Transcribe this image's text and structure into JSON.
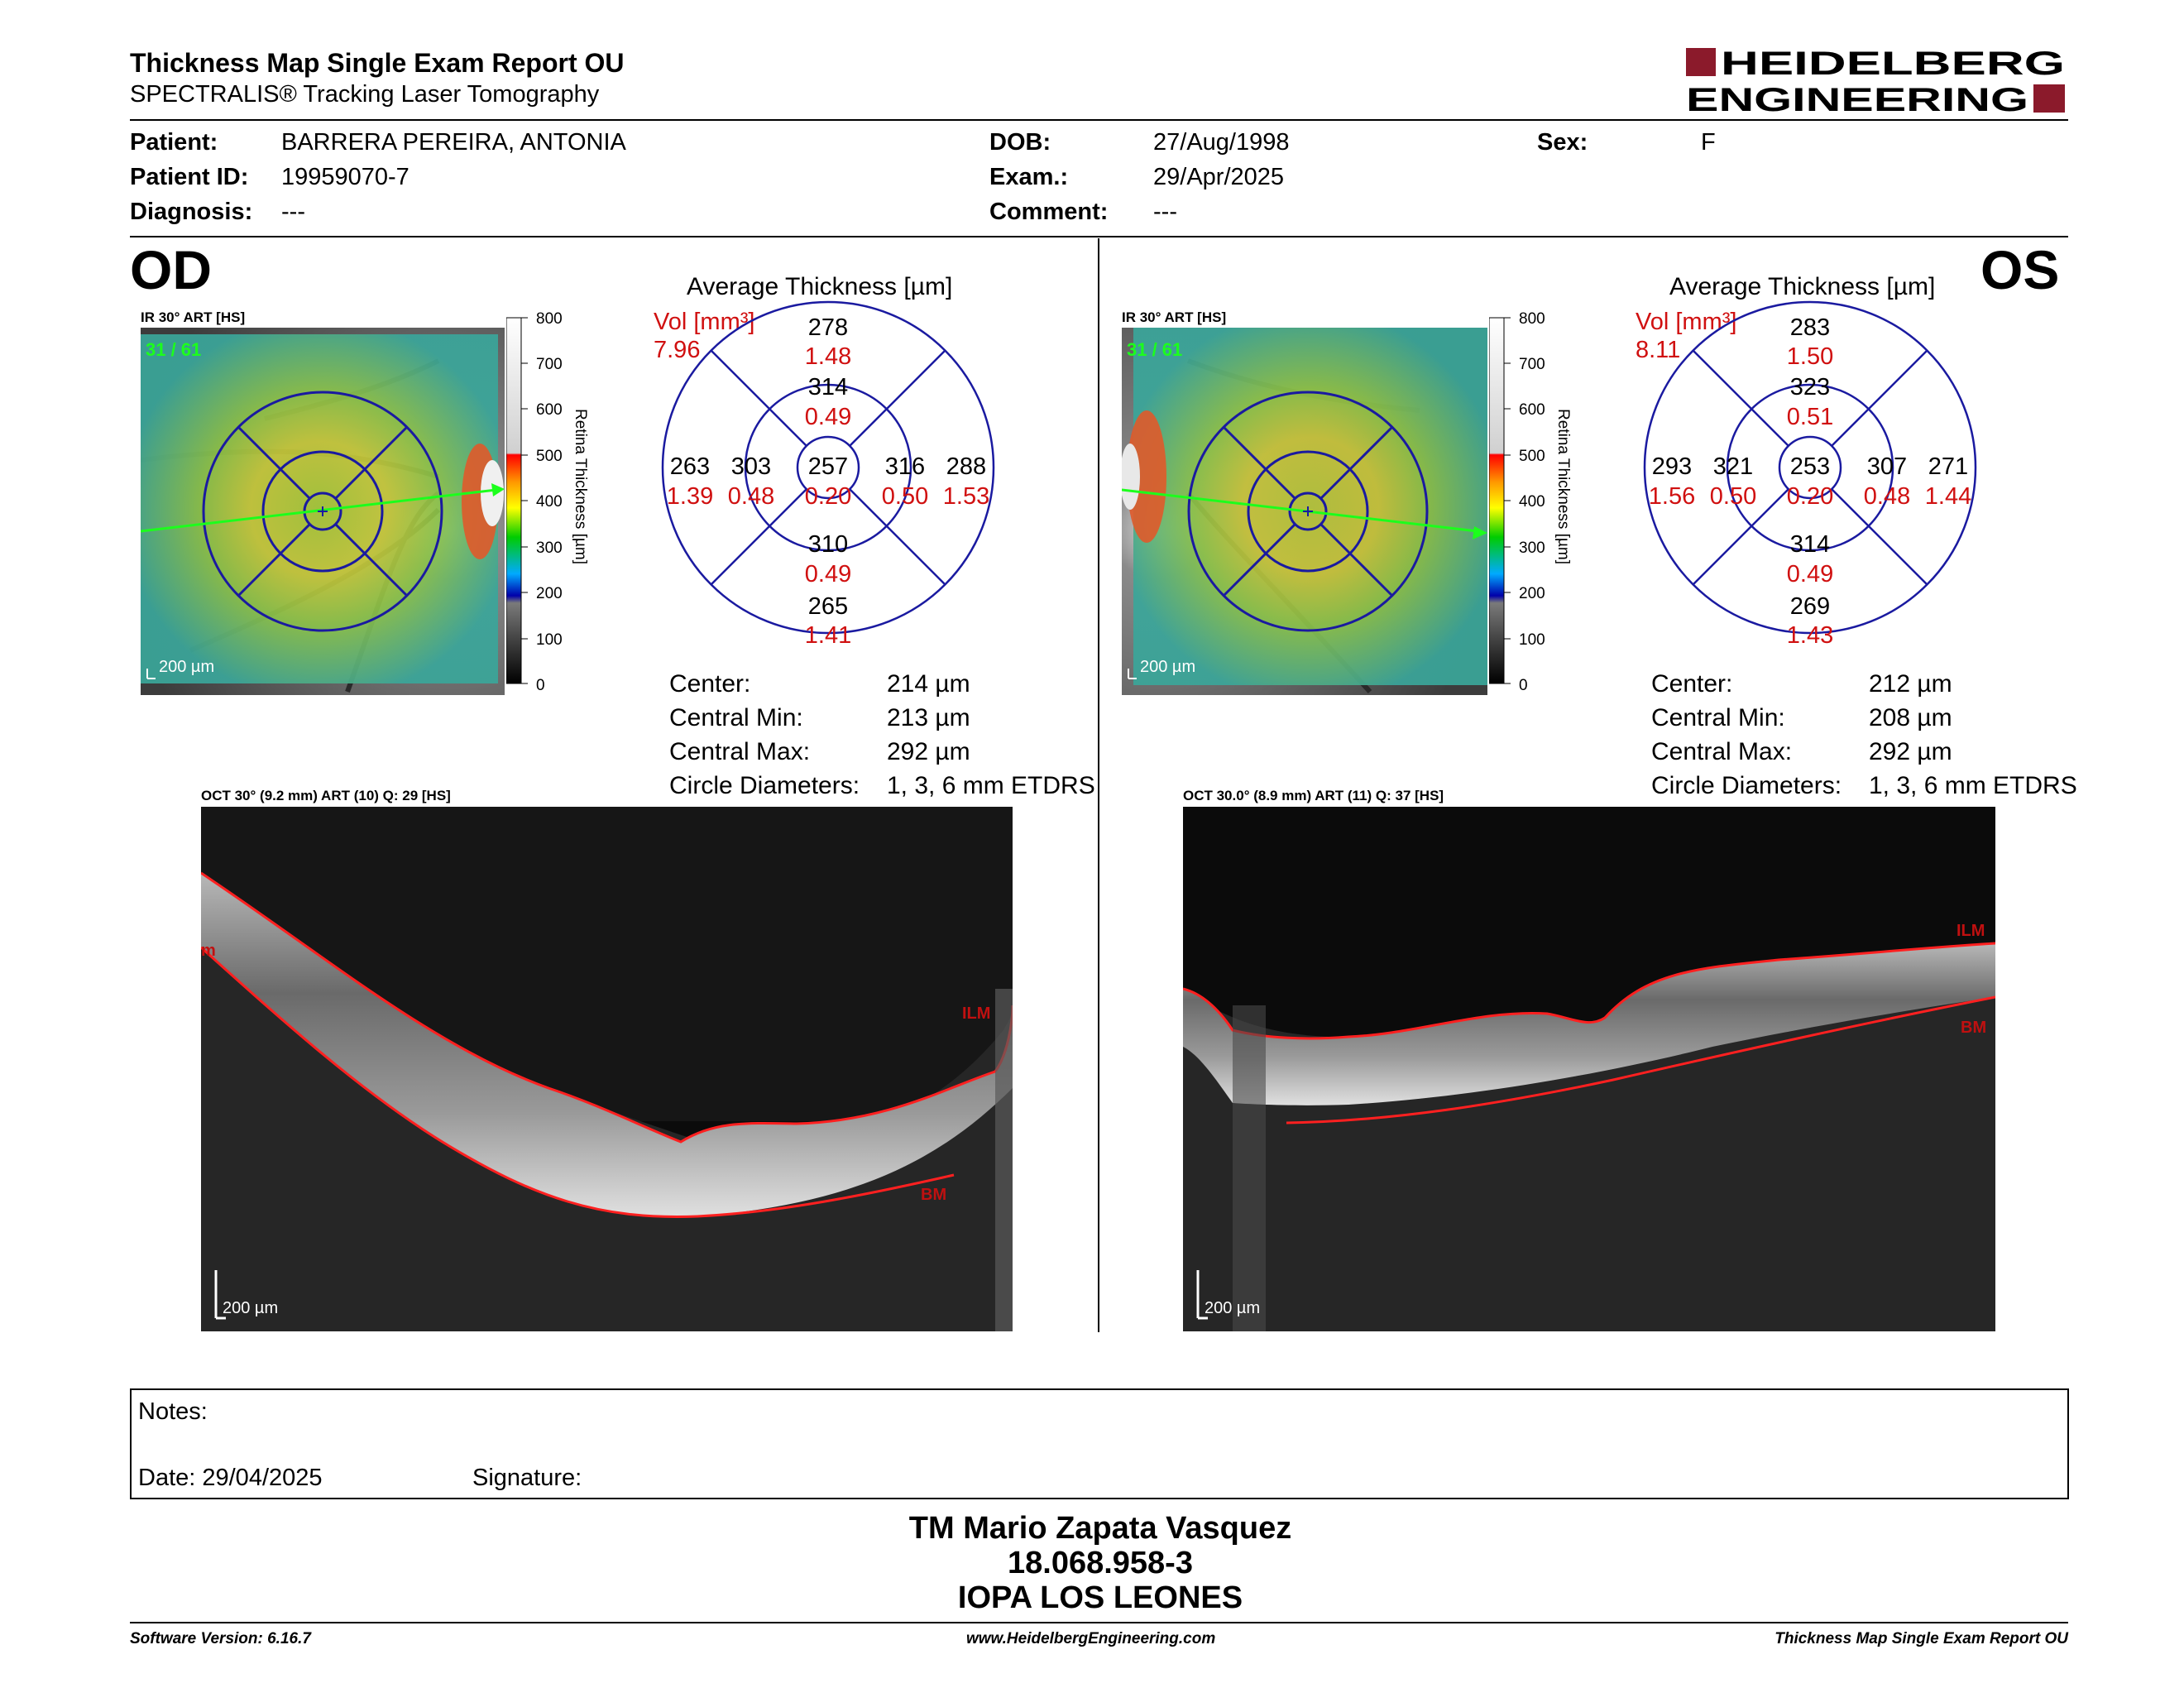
{
  "header": {
    "title": "Thickness Map Single Exam Report OU",
    "subtitle": "SPECTRALIS® Tracking Laser Tomography",
    "logo_line1": "HEIDELBERG",
    "logo_line2": "ENGINEERING",
    "brand_color": "#8b1a2b"
  },
  "patient": {
    "patient_label": "Patient:",
    "patient_value": "BARRERA PEREIRA, ANTONIA",
    "id_label": "Patient ID:",
    "id_value": "19959070-7",
    "diagnosis_label": "Diagnosis:",
    "diagnosis_value": "---",
    "dob_label": "DOB:",
    "dob_value": "27/Aug/1998",
    "exam_label": "Exam.:",
    "exam_value": "29/Apr/2025",
    "comment_label": "Comment:",
    "comment_value": "---",
    "sex_label": "Sex:",
    "sex_value": "F"
  },
  "od": {
    "eye": "OD",
    "ir_title": "IR 30° ART [HS]",
    "frame_count": "31 / 61",
    "scale_ir": "200 µm",
    "colorbar_ticks": [
      "800",
      "700",
      "600",
      "500",
      "400",
      "300",
      "200",
      "100",
      "0"
    ],
    "colorbar_label": "Retina Thickness [µm]",
    "avg_title": "Average Thickness [µm]",
    "vol_label": "Vol [mm³]",
    "vol_value": "7.96",
    "grid": {
      "top": {
        "t": "278",
        "v": "1.48"
      },
      "inner_top": {
        "t": "314",
        "v": "0.49"
      },
      "center": {
        "t": "257",
        "v": "0.20"
      },
      "inner_bottom": {
        "t": "310",
        "v": "0.49"
      },
      "bottom": {
        "t": "265",
        "v": "1.41"
      },
      "outer_left": {
        "t": "263",
        "v": "1.39"
      },
      "inner_left": {
        "t": "303",
        "v": "0.48"
      },
      "inner_right": {
        "t": "316",
        "v": "0.50"
      },
      "outer_right": {
        "t": "288",
        "v": "1.53"
      }
    },
    "stats": {
      "center_label": "Center:",
      "center_value": "214 µm",
      "min_label": "Central Min:",
      "min_value": "213 µm",
      "max_label": "Central Max:",
      "max_value": "292 µm",
      "diam_label": "Circle Diameters:",
      "diam_value": "1, 3, 6 mm ETDRS"
    },
    "oct_title": "OCT 30° (9.2 mm) ART (10) Q: 29 [HS]",
    "oct_scale": "200 µm",
    "ilm": "ILM",
    "ilm_cut": "m",
    "bm": "BM"
  },
  "os": {
    "eye": "OS",
    "ir_title": "IR 30° ART [HS]",
    "frame_count": "31 / 61",
    "scale_ir": "200 µm",
    "colorbar_ticks": [
      "800",
      "700",
      "600",
      "500",
      "400",
      "300",
      "200",
      "100",
      "0"
    ],
    "colorbar_label": "Retina Thickness [µm]",
    "avg_title": "Average Thickness [µm]",
    "vol_label": "Vol [mm³]",
    "vol_value": "8.11",
    "grid": {
      "top": {
        "t": "283",
        "v": "1.50"
      },
      "inner_top": {
        "t": "323",
        "v": "0.51"
      },
      "center": {
        "t": "253",
        "v": "0.20"
      },
      "inner_bottom": {
        "t": "314",
        "v": "0.49"
      },
      "bottom": {
        "t": "269",
        "v": "1.43"
      },
      "outer_left": {
        "t": "293",
        "v": "1.56"
      },
      "inner_left": {
        "t": "321",
        "v": "0.50"
      },
      "inner_right": {
        "t": "307",
        "v": "0.48"
      },
      "outer_right": {
        "t": "271",
        "v": "1.44"
      }
    },
    "stats": {
      "center_label": "Center:",
      "center_value": "212 µm",
      "min_label": "Central Min:",
      "min_value": "208 µm",
      "max_label": "Central Max:",
      "max_value": "292 µm",
      "diam_label": "Circle Diameters:",
      "diam_value": "1, 3, 6 mm ETDRS"
    },
    "oct_title": "OCT 30.0° (8.9 mm) ART (11) Q: 37 [HS]",
    "oct_scale": "200 µm",
    "ilm": "ILM",
    "bm": "BM"
  },
  "notes": {
    "notes_label": "Notes:",
    "date_label": "Date: 29/04/2025",
    "signature_label": "Signature:"
  },
  "signature": {
    "name": "TM Mario Zapata Vasquez",
    "rut": "18.068.958-3",
    "clinic": "IOPA LOS LEONES"
  },
  "footer": {
    "software": "Software Version: 6.16.7",
    "website": "www.HeidelbergEngineering.com",
    "report": "Thickness Map Single Exam Report OU"
  }
}
